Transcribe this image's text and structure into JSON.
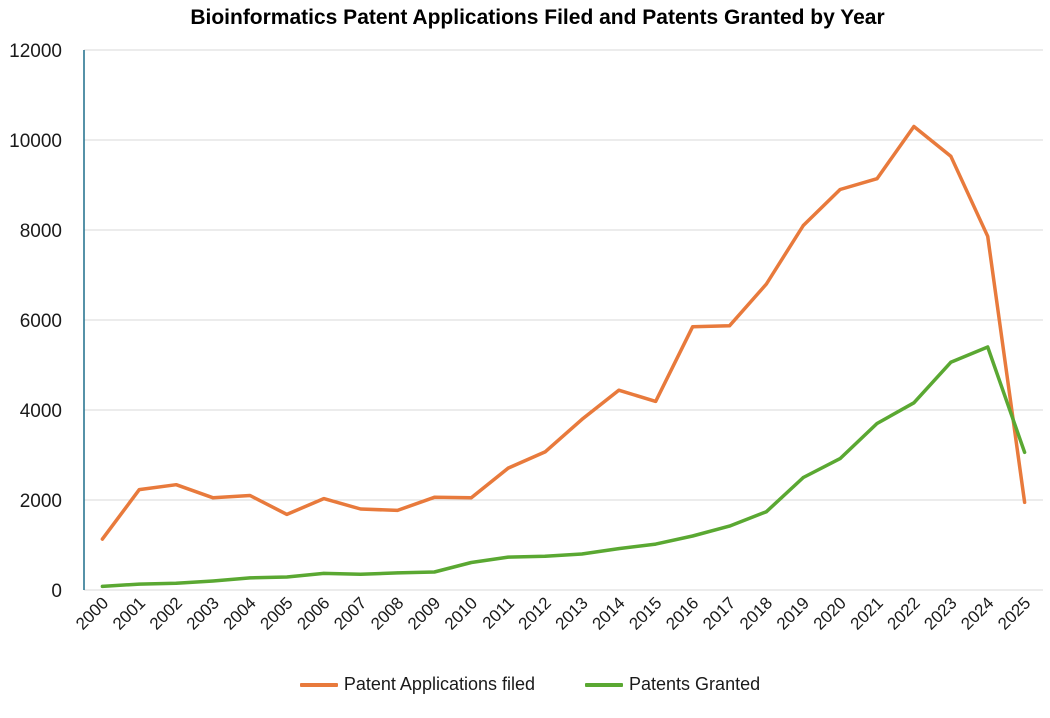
{
  "chart_data": {
    "type": "line",
    "title": "Bioinformatics Patent Applications Filed and Patents Granted by Year",
    "xlabel": "",
    "ylabel": "",
    "ylim": [
      0,
      12000
    ],
    "yticks": [
      0,
      2000,
      4000,
      6000,
      8000,
      10000,
      12000
    ],
    "ytick_labels": [
      "0",
      "2000",
      "4000",
      "6000",
      "8000",
      "10000",
      "12000"
    ],
    "grid": true,
    "legend_position": "bottom-center",
    "categories": [
      "2000",
      "2001",
      "2002",
      "2003",
      "2004",
      "2005",
      "2006",
      "2007",
      "2008",
      "2009",
      "2010",
      "2011",
      "2012",
      "2013",
      "2014",
      "2015",
      "2016",
      "2017",
      "2018",
      "2019",
      "2020",
      "2021",
      "2022",
      "2023",
      "2024",
      "2025"
    ],
    "series": [
      {
        "name": "Patent Applications filed",
        "color": "#E87A3C",
        "values": [
          1130,
          2230,
          2340,
          2050,
          2100,
          1680,
          2030,
          1800,
          1770,
          2060,
          2050,
          2710,
          3070,
          3790,
          4440,
          4190,
          5850,
          5870,
          6800,
          8100,
          8900,
          9140,
          10300,
          9640,
          7860,
          1950
        ]
      },
      {
        "name": "Patents Granted",
        "color": "#5AA832",
        "values": [
          80,
          130,
          150,
          200,
          270,
          290,
          370,
          350,
          380,
          400,
          610,
          730,
          750,
          800,
          920,
          1020,
          1200,
          1420,
          1740,
          2500,
          2920,
          3700,
          4160,
          5060,
          5400,
          3060
        ]
      }
    ]
  }
}
